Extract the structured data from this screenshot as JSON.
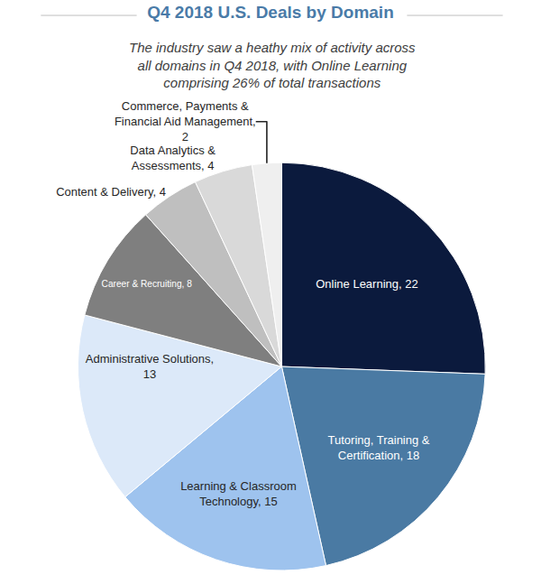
{
  "chart_data": {
    "type": "pie",
    "title": "Q4 2018 U.S. Deals by Domain",
    "subtitle": "The industry saw a heathy mix of activity across all domains in Q4 2018, with Online Learning comprising 26% of total transactions",
    "categories": [
      "Online Learning",
      "Tutoring, Training & Certification",
      "Learning & Classroom Technology",
      "Administrative Solutions",
      "Career & Recruiting",
      "Content & Delivery",
      "Data Analytics & Assessments",
      "Commerce, Payments & Financial Aid Management"
    ],
    "values": [
      22,
      18,
      15,
      13,
      8,
      4,
      4,
      2
    ],
    "value_labels": [
      "Online Learning, 22",
      "Tutoring, Training & Certification, 18",
      "Learning & Classroom Technology, 15",
      "Administrative Solutions, 13",
      "Career & Recruiting, 8",
      "Content & Delivery, 4",
      "Data Analytics & Assessments, 4",
      "Commerce, Payments & Financial Aid Management, 2"
    ],
    "colors": [
      "#0b1a3d",
      "#4a7aa3",
      "#9ec3ee",
      "#dce9f9",
      "#7f7f7f",
      "#bfbfbf",
      "#d9d9d9",
      "#efefef"
    ],
    "data_labels": true
  }
}
